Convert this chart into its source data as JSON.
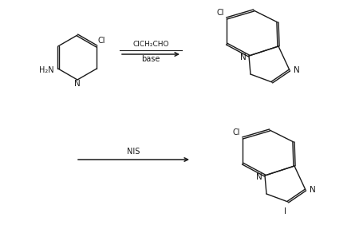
{
  "bg_color": "#ffffff",
  "line_color": "#1a1a1a",
  "reaction1_reagent": "ClCH₂CHO",
  "reaction1_condition": "base",
  "reaction2_reagent": "NIS",
  "fig_width": 4.56,
  "fig_height": 2.87,
  "dpi": 100
}
